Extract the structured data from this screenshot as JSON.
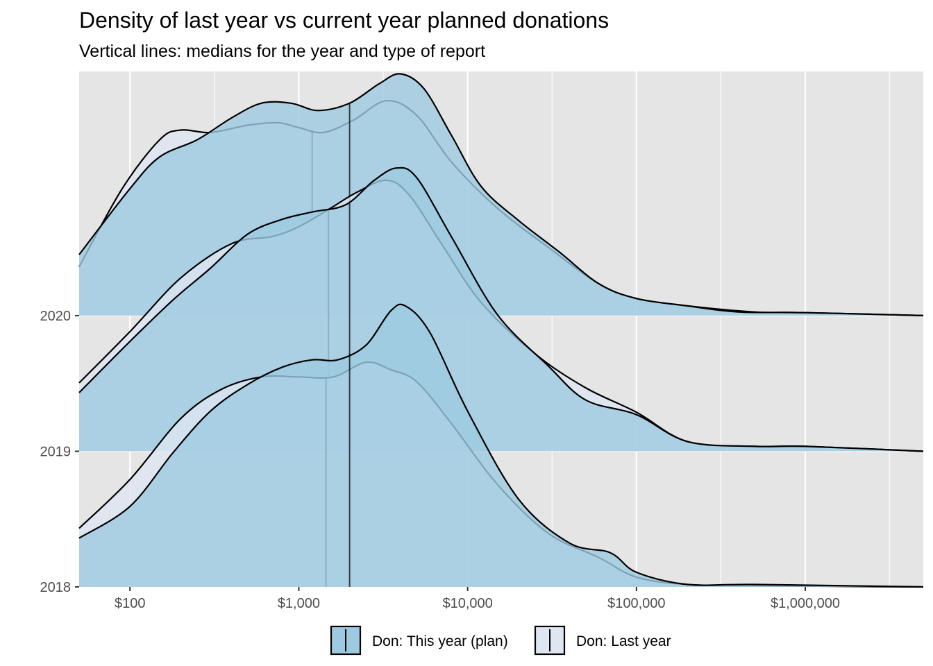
{
  "chart_data": {
    "type": "ridgeline-density",
    "title": "Density of last year vs current year planned donations",
    "subtitle": "Vertical lines: medians for the year and type of report",
    "x_scale": "log10",
    "xlim": [
      50,
      5000000
    ],
    "x_ticks": [
      100,
      1000,
      10000,
      100000,
      1000000
    ],
    "x_tick_labels": [
      "$100",
      "$1,000",
      "$10,000",
      "$100,000",
      "$1,000,000"
    ],
    "y_categories": [
      "2020",
      "2019",
      "2018"
    ],
    "grid": true,
    "legend_position": "bottom",
    "series": [
      {
        "name": "Don: This year (plan)",
        "color": "#9ecae1",
        "medians": {
          "2020": 2000,
          "2019": 2000,
          "2018": 2000
        },
        "density": {
          "2020": [
            [
              50,
              0.25
            ],
            [
              100,
              0.52
            ],
            [
              150,
              0.65
            ],
            [
              250,
              0.72
            ],
            [
              400,
              0.81
            ],
            [
              600,
              0.87
            ],
            [
              900,
              0.87
            ],
            [
              1300,
              0.84
            ],
            [
              2000,
              0.87
            ],
            [
              3000,
              0.95
            ],
            [
              4000,
              0.99
            ],
            [
              5500,
              0.93
            ],
            [
              8000,
              0.74
            ],
            [
              12000,
              0.53
            ],
            [
              20000,
              0.39
            ],
            [
              35000,
              0.26
            ],
            [
              60000,
              0.13
            ],
            [
              100000,
              0.07
            ],
            [
              200000,
              0.04
            ],
            [
              400000,
              0.015
            ],
            [
              1000000,
              0.012
            ],
            [
              5000000,
              0.0
            ]
          ],
          "2019": [
            [
              50,
              0.24
            ],
            [
              100,
              0.45
            ],
            [
              180,
              0.62
            ],
            [
              300,
              0.75
            ],
            [
              500,
              0.89
            ],
            [
              800,
              0.95
            ],
            [
              1200,
              0.98
            ],
            [
              1900,
              1.01
            ],
            [
              2800,
              1.11
            ],
            [
              3800,
              1.16
            ],
            [
              5000,
              1.12
            ],
            [
              8000,
              0.88
            ],
            [
              15000,
              0.56
            ],
            [
              30000,
              0.35
            ],
            [
              50000,
              0.21
            ],
            [
              100000,
              0.15
            ],
            [
              200000,
              0.04
            ],
            [
              500000,
              0.02
            ],
            [
              1000000,
              0.02
            ],
            [
              5000000,
              0.0
            ]
          ],
          "2018": [
            [
              50,
              0.2
            ],
            [
              100,
              0.33
            ],
            [
              180,
              0.55
            ],
            [
              300,
              0.72
            ],
            [
              500,
              0.83
            ],
            [
              800,
              0.9
            ],
            [
              1200,
              0.93
            ],
            [
              1700,
              0.93
            ],
            [
              2500,
              0.99
            ],
            [
              3500,
              1.13
            ],
            [
              4300,
              1.15
            ],
            [
              6000,
              1.04
            ],
            [
              10000,
              0.72
            ],
            [
              20000,
              0.36
            ],
            [
              40000,
              0.18
            ],
            [
              70000,
              0.14
            ],
            [
              100000,
              0.06
            ],
            [
              200000,
              0.01
            ],
            [
              500000,
              0.01
            ],
            [
              5000000,
              0.0
            ]
          ]
        }
      },
      {
        "name": "Don: Last year",
        "color": "#dee6f2",
        "medians": {
          "2020": 1200,
          "2019": 1500,
          "2018": 1450
        },
        "density": {
          "2020": [
            [
              50,
              0.2
            ],
            [
              90,
              0.52
            ],
            [
              150,
              0.72
            ],
            [
              200,
              0.76
            ],
            [
              300,
              0.75
            ],
            [
              500,
              0.78
            ],
            [
              750,
              0.79
            ],
            [
              1000,
              0.77
            ],
            [
              1400,
              0.75
            ],
            [
              2100,
              0.8
            ],
            [
              3300,
              0.88
            ],
            [
              5000,
              0.82
            ],
            [
              8000,
              0.63
            ],
            [
              15000,
              0.44
            ],
            [
              30000,
              0.28
            ],
            [
              60000,
              0.13
            ],
            [
              100000,
              0.07
            ],
            [
              200000,
              0.04
            ],
            [
              500000,
              0.015
            ],
            [
              1000000,
              0.012
            ],
            [
              5000000,
              0.0
            ]
          ],
          "2019": [
            [
              50,
              0.28
            ],
            [
              100,
              0.49
            ],
            [
              200,
              0.71
            ],
            [
              400,
              0.85
            ],
            [
              700,
              0.88
            ],
            [
              1000,
              0.92
            ],
            [
              1500,
              0.99
            ],
            [
              2200,
              1.06
            ],
            [
              3300,
              1.11
            ],
            [
              4500,
              1.05
            ],
            [
              7000,
              0.85
            ],
            [
              12000,
              0.61
            ],
            [
              25000,
              0.4
            ],
            [
              50000,
              0.26
            ],
            [
              100000,
              0.16
            ],
            [
              200000,
              0.04
            ],
            [
              500000,
              0.02
            ],
            [
              1000000,
              0.02
            ],
            [
              5000000,
              0.0
            ]
          ],
          "2018": [
            [
              50,
              0.24
            ],
            [
              100,
              0.44
            ],
            [
              200,
              0.69
            ],
            [
              350,
              0.81
            ],
            [
              600,
              0.86
            ],
            [
              1000,
              0.86
            ],
            [
              1600,
              0.86
            ],
            [
              2500,
              0.92
            ],
            [
              3500,
              0.89
            ],
            [
              5000,
              0.84
            ],
            [
              8000,
              0.67
            ],
            [
              15000,
              0.42
            ],
            [
              30000,
              0.22
            ],
            [
              60000,
              0.12
            ],
            [
              100000,
              0.04
            ],
            [
              200000,
              0.01
            ],
            [
              500000,
              0.005
            ],
            [
              5000000,
              0.0
            ]
          ]
        }
      }
    ]
  }
}
